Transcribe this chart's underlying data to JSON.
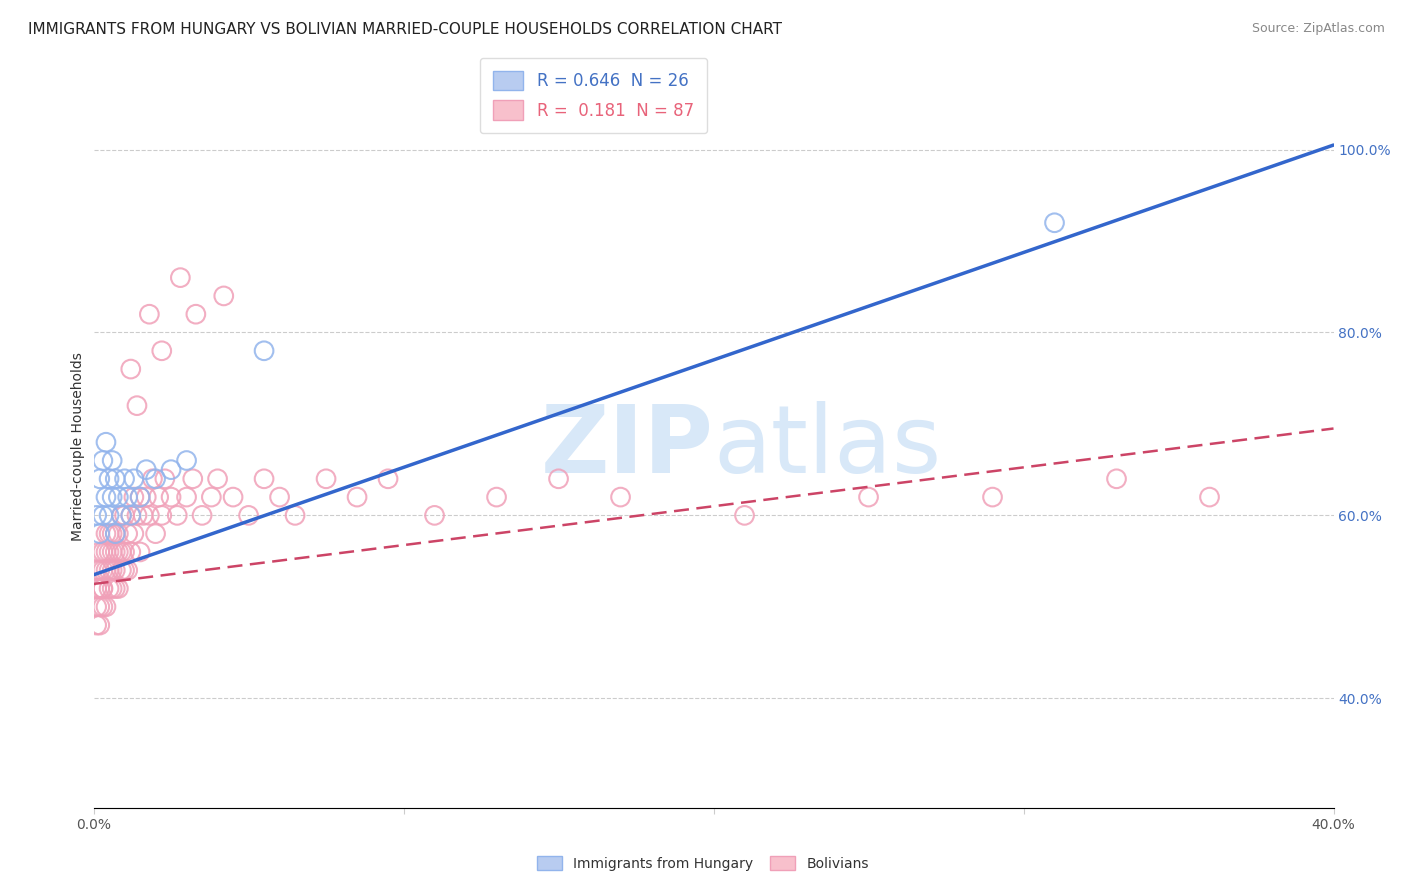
{
  "title": "IMMIGRANTS FROM HUNGARY VS BOLIVIAN MARRIED-COUPLE HOUSEHOLDS CORRELATION CHART",
  "source_text": "Source: ZipAtlas.com",
  "ylabel": "Married-couple Households",
  "xlabel": "",
  "xlim": [
    0.0,
    0.4
  ],
  "ylim": [
    0.28,
    1.07
  ],
  "yticks": [
    0.4,
    0.6,
    0.8,
    1.0
  ],
  "xticks": [
    0.0,
    0.1,
    0.2,
    0.3,
    0.4
  ],
  "xtick_labels": [
    "0.0%",
    "",
    "",
    "",
    "40.0%"
  ],
  "ytick_labels": [
    "40.0%",
    "60.0%",
    "80.0%",
    "100.0%"
  ],
  "legend1_label": "R = 0.646  N = 26",
  "legend2_label": "R =  0.181  N = 87",
  "legend1_color": "#4472C4",
  "legend2_color": "#E8637A",
  "series1_color": "#92B4EC",
  "series2_color": "#F0A0B8",
  "watermark_zip": "ZIP",
  "watermark_atlas": "atlas",
  "watermark_color": "#D8E8F8",
  "blue_trend_x": [
    0.0,
    0.4
  ],
  "blue_trend_y": [
    0.535,
    1.005
  ],
  "pink_trend_x": [
    0.0,
    0.4
  ],
  "pink_trend_y": [
    0.525,
    0.695
  ],
  "blue_x": [
    0.001,
    0.002,
    0.002,
    0.003,
    0.003,
    0.004,
    0.004,
    0.005,
    0.005,
    0.006,
    0.006,
    0.007,
    0.007,
    0.008,
    0.009,
    0.01,
    0.011,
    0.012,
    0.013,
    0.015,
    0.017,
    0.02,
    0.025,
    0.03,
    0.055,
    0.31
  ],
  "blue_y": [
    0.6,
    0.58,
    0.64,
    0.6,
    0.66,
    0.62,
    0.68,
    0.6,
    0.64,
    0.62,
    0.66,
    0.58,
    0.64,
    0.62,
    0.6,
    0.64,
    0.62,
    0.6,
    0.64,
    0.62,
    0.65,
    0.64,
    0.65,
    0.66,
    0.78,
    0.92
  ],
  "pink_x": [
    0.001,
    0.001,
    0.001,
    0.001,
    0.002,
    0.002,
    0.002,
    0.002,
    0.002,
    0.003,
    0.003,
    0.003,
    0.003,
    0.003,
    0.004,
    0.004,
    0.004,
    0.004,
    0.005,
    0.005,
    0.005,
    0.005,
    0.006,
    0.006,
    0.006,
    0.006,
    0.007,
    0.007,
    0.007,
    0.007,
    0.008,
    0.008,
    0.008,
    0.009,
    0.009,
    0.009,
    0.01,
    0.01,
    0.01,
    0.011,
    0.011,
    0.012,
    0.012,
    0.013,
    0.013,
    0.014,
    0.015,
    0.015,
    0.016,
    0.017,
    0.018,
    0.019,
    0.02,
    0.021,
    0.022,
    0.023,
    0.025,
    0.027,
    0.03,
    0.032,
    0.035,
    0.038,
    0.04,
    0.045,
    0.05,
    0.055,
    0.06,
    0.065,
    0.075,
    0.085,
    0.095,
    0.11,
    0.13,
    0.15,
    0.17,
    0.21,
    0.25,
    0.29,
    0.33,
    0.36,
    0.012,
    0.014,
    0.018,
    0.022,
    0.028,
    0.033,
    0.042
  ],
  "pink_y": [
    0.5,
    0.52,
    0.54,
    0.48,
    0.52,
    0.54,
    0.5,
    0.56,
    0.48,
    0.52,
    0.54,
    0.5,
    0.56,
    0.52,
    0.54,
    0.56,
    0.5,
    0.58,
    0.54,
    0.52,
    0.56,
    0.58,
    0.54,
    0.52,
    0.56,
    0.58,
    0.52,
    0.54,
    0.56,
    0.58,
    0.52,
    0.56,
    0.58,
    0.54,
    0.56,
    0.6,
    0.54,
    0.56,
    0.6,
    0.54,
    0.58,
    0.56,
    0.6,
    0.58,
    0.62,
    0.6,
    0.56,
    0.62,
    0.6,
    0.62,
    0.6,
    0.64,
    0.58,
    0.62,
    0.6,
    0.64,
    0.62,
    0.6,
    0.62,
    0.64,
    0.6,
    0.62,
    0.64,
    0.62,
    0.6,
    0.64,
    0.62,
    0.6,
    0.64,
    0.62,
    0.64,
    0.6,
    0.62,
    0.64,
    0.62,
    0.6,
    0.62,
    0.62,
    0.64,
    0.62,
    0.76,
    0.72,
    0.82,
    0.78,
    0.86,
    0.82,
    0.84
  ],
  "title_fontsize": 11,
  "axis_label_fontsize": 10,
  "tick_fontsize": 10,
  "legend_fontsize": 12,
  "source_fontsize": 9
}
